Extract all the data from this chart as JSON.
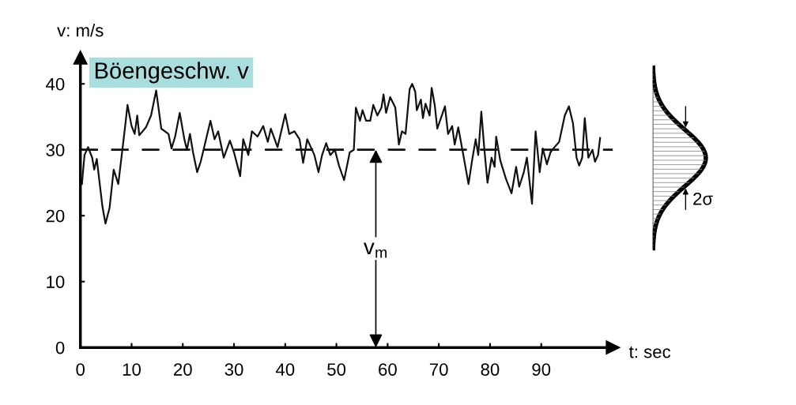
{
  "chart_data": {
    "type": "line",
    "xlabel": "t: sec",
    "ylabel": "v: m/s",
    "x": [
      0.3,
      0.8,
      1.5,
      2.3,
      2.7,
      3.2,
      4.3,
      4.9,
      5.7,
      6.5,
      7.4,
      8.2,
      8.8,
      9.2,
      10,
      10.6,
      11.1,
      11.5,
      12.8,
      13.8,
      14.8,
      15.8,
      17.2,
      17.8,
      18.5,
      19.4,
      20.3,
      20.8,
      21.4,
      22,
      22.8,
      23.5,
      25.4,
      26.2,
      26.9,
      28,
      29.2,
      30,
      31.2,
      31.8,
      32.8,
      33.5,
      34.6,
      35.7,
      36.6,
      37.2,
      38.5,
      40,
      40.8,
      41.8,
      42.8,
      43.5,
      44.3,
      45.7,
      46.5,
      47.2,
      48,
      48.8,
      49.7,
      50.5,
      51.5,
      52.6,
      53.4,
      53.8,
      54.6,
      55.1,
      55.8,
      56.6,
      57.2,
      58,
      58.8,
      59.2,
      59.7,
      60.5,
      61.5,
      62.2,
      62.8,
      63.5,
      64.3,
      64.8,
      65.4,
      65.7,
      66.5,
      66.9,
      67.4,
      68.2,
      68.6,
      69.2,
      69.7,
      70.5,
      71.2,
      71.8,
      72.6,
      73.1,
      73.8,
      74.6,
      75.8,
      76.5,
      77.2,
      77.7,
      78.3,
      78.9,
      79.5,
      80.3,
      80.9,
      81.2,
      82,
      83.1,
      84.2,
      85.1,
      85.7,
      86.6,
      87.2,
      88.2,
      88.9,
      89.7,
      90.3,
      91.1,
      91.8,
      92.6,
      93.5,
      94.6,
      95.4,
      96.2,
      96.9,
      97.4,
      98,
      98.5,
      99.2,
      100,
      100.5,
      101.1,
      101.5
    ],
    "series": [
      {
        "color": "#111111",
        "values": [
          24.8,
          29.2,
          30.4,
          28.8,
          27,
          28.6,
          21.4,
          18.8,
          21.2,
          27,
          24.8,
          30,
          34,
          36.8,
          33.6,
          32.4,
          35.2,
          32.2,
          33.4,
          35.2,
          39,
          33.2,
          32.4,
          30.2,
          32,
          35.6,
          31.6,
          30,
          32.4,
          29.6,
          26.6,
          28.2,
          34.4,
          31.6,
          32.8,
          28.8,
          31.4,
          29.6,
          26,
          31.6,
          29.2,
          32.8,
          32,
          33.6,
          31.2,
          33.2,
          30.4,
          35.4,
          32.4,
          32.8,
          31.6,
          28,
          31.6,
          29.2,
          26.6,
          29.2,
          31,
          29.2,
          30,
          27.6,
          25.4,
          29.6,
          30,
          36.4,
          34.4,
          36,
          34.4,
          34.4,
          36.8,
          35.2,
          36.4,
          38.4,
          35.6,
          38,
          36.4,
          30.8,
          32.8,
          32.4,
          39.2,
          40,
          38.8,
          36,
          37.6,
          34.8,
          37,
          35.2,
          39.4,
          36.8,
          33.2,
          35,
          36.6,
          32.4,
          33.6,
          30.8,
          33.4,
          30,
          24.8,
          28.4,
          31.6,
          29.2,
          35.8,
          30,
          25,
          28.8,
          27.4,
          32,
          28.4,
          25.6,
          23.4,
          27.4,
          24.4,
          26.6,
          28.8,
          21.8,
          32.8,
          26.6,
          30.2,
          27.8,
          29.6,
          30.4,
          31.2,
          35.2,
          36.6,
          34,
          28.8,
          27.6,
          28.8,
          34.8,
          28.8,
          30,
          28.2,
          29.2,
          31.8
        ]
      }
    ],
    "xlim": [
      0,
      104
    ],
    "ylim": [
      0,
      44
    ],
    "xticks": [
      0,
      10,
      20,
      30,
      40,
      50,
      60,
      70,
      80,
      90
    ],
    "yticks": [
      0,
      10,
      20,
      30,
      40
    ],
    "ref_lines": [
      {
        "axis": "y",
        "value": 30,
        "line_style": "dashed",
        "color": "#111111"
      }
    ],
    "annotations": [
      "Böengeschw. v",
      {
        "text": "v$_{m}$",
        "x": 57.7,
        "y": 15
      },
      "2σ"
    ],
    "marker": "none",
    "line_style": "solid",
    "grid": false,
    "legend": false
  }
}
